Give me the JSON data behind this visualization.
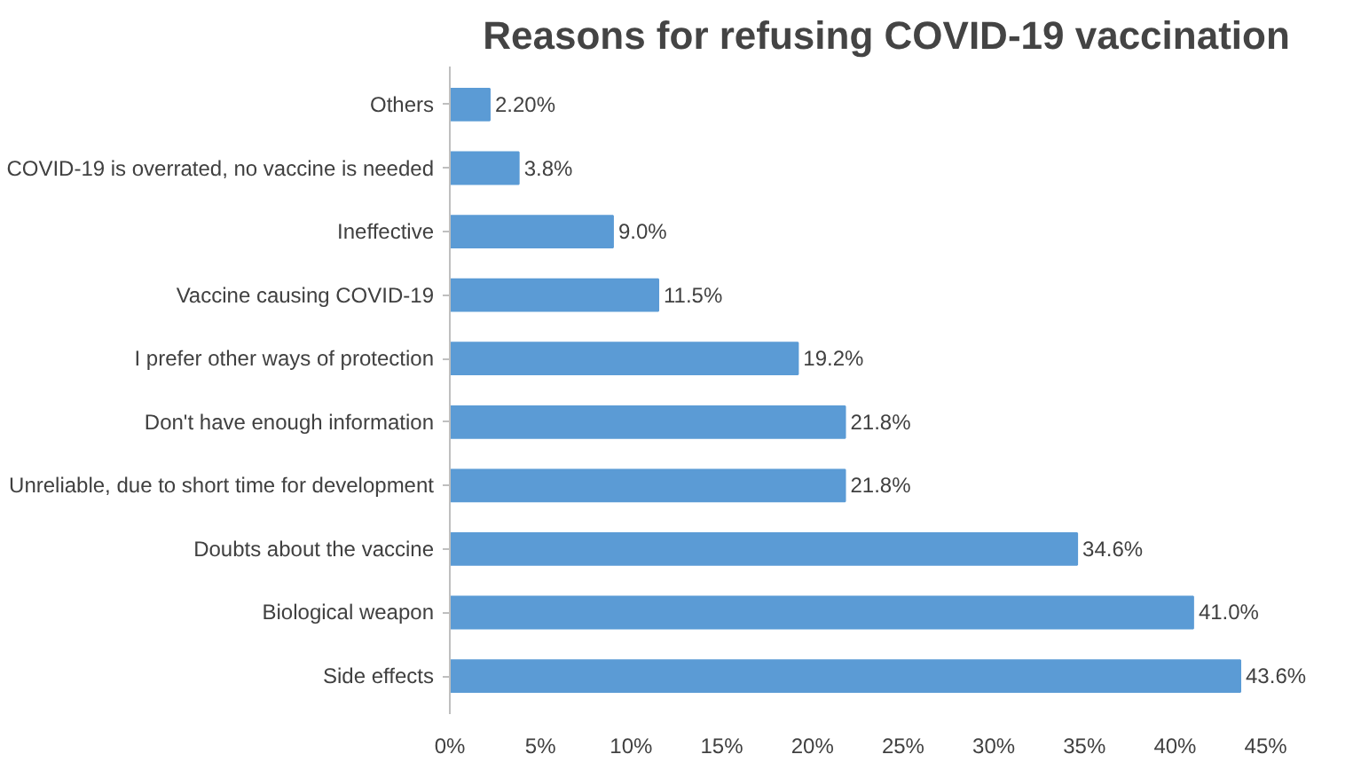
{
  "chart_data": {
    "type": "bar",
    "orientation": "horizontal",
    "title": "Reasons for refusing COVID-19 vaccination",
    "categories": [
      "Others",
      "COVID-19 is overrated, no vaccine is needed",
      "Ineffective",
      "Vaccine causing COVID-19",
      "I prefer other ways of protection",
      "Don't have enough information",
      "Unreliable, due to short time for development",
      "Doubts about the vaccine",
      "Biological weapon",
      "Side effects"
    ],
    "values": [
      2.2,
      3.8,
      9.0,
      11.5,
      19.2,
      21.8,
      21.8,
      34.6,
      41.0,
      43.6
    ],
    "value_labels": [
      "2.20%",
      "3.8%",
      "9.0%",
      "11.5%",
      "19.2%",
      "21.8%",
      "21.8%",
      "34.6%",
      "41.0%",
      "43.6%"
    ],
    "color": "#5b9bd5",
    "xlim": [
      0,
      45
    ],
    "xticks": [
      {
        "value": 0,
        "label": "0%"
      },
      {
        "value": 5,
        "label": "5%"
      },
      {
        "value": 10,
        "label": "10%"
      },
      {
        "value": 15,
        "label": "15%"
      },
      {
        "value": 20,
        "label": "20%"
      },
      {
        "value": 25,
        "label": "25%"
      },
      {
        "value": 30,
        "label": "30%"
      },
      {
        "value": 35,
        "label": "35%"
      },
      {
        "value": 40,
        "label": "40%"
      },
      {
        "value": 45,
        "label": "45%"
      }
    ],
    "grid": false
  }
}
